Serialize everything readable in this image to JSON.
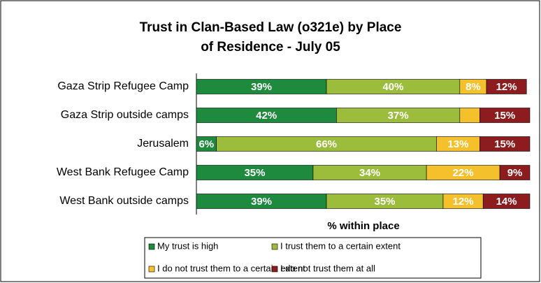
{
  "chart_data": {
    "type": "stacked-bar-horizontal",
    "title": "Trust in Clan-Based Law (o321e) by Place of Residence - July 05",
    "x_label": "% within place",
    "categories": [
      "Gaza Strip Refugee Camp",
      "Gaza Strip outside camps",
      "Jerusalem",
      "West Bank Refugee Camp",
      "West Bank outside camps"
    ],
    "xlim": [
      0,
      100
    ],
    "series": [
      {
        "name": "My trust is high",
        "color": "#1e8a3e",
        "values": [
          39,
          42,
          6,
          35,
          39
        ],
        "value_labels": [
          "39%",
          "42%",
          "6%",
          "35%",
          "39%"
        ]
      },
      {
        "name": "I trust them to a certain extent",
        "color": "#9cbd3c",
        "values": [
          40,
          37,
          66,
          34,
          35
        ],
        "value_labels": [
          "40%",
          "37%",
          "66%",
          "34%",
          "35%"
        ]
      },
      {
        "name": "I do not trust them to a certain extent",
        "color": "#f4c02c",
        "values": [
          8,
          6,
          13,
          22,
          12
        ],
        "value_labels": [
          "8%",
          null,
          "13%",
          "22%",
          "12%"
        ]
      },
      {
        "name": "I do not trust them at all",
        "color": "#8c1c1e",
        "values": [
          12,
          15,
          15,
          9,
          14
        ],
        "value_labels": [
          "12%",
          "15%",
          "15%",
          "9%",
          "14%"
        ]
      }
    ],
    "legend": "bottom"
  }
}
